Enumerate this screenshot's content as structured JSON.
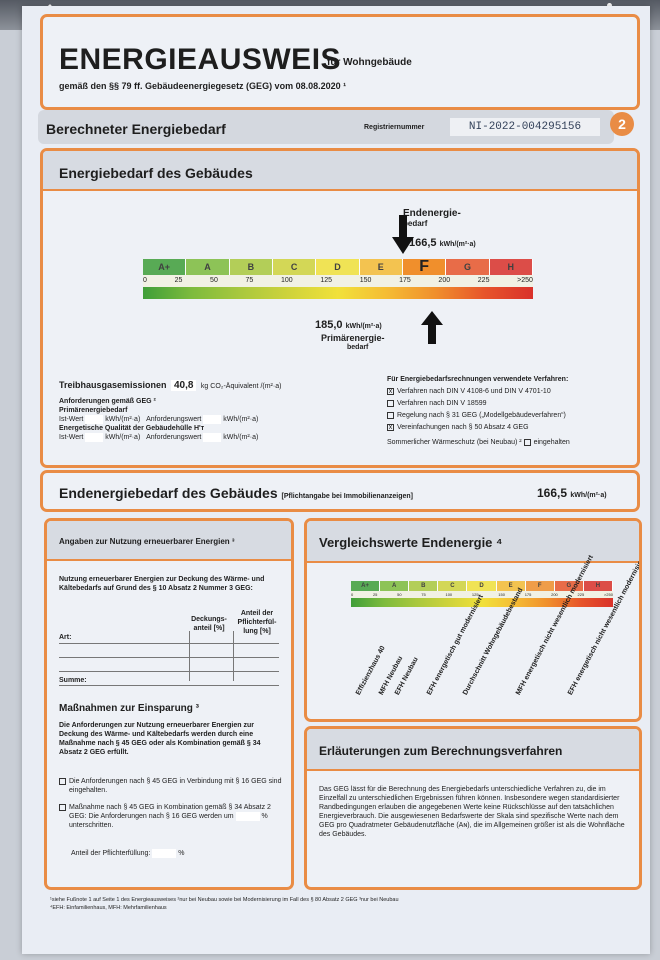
{
  "header": {
    "title": "ENERGIEAUSWEIS",
    "subtitle": "für Wohngebäude",
    "legal": "gemäß den §§ 79 ff. Gebäudeenergiegesetz (GEG) vom 08.08.2020 ¹"
  },
  "section_bar": {
    "title": "Berechneter Energiebedarf",
    "reg_label": "Registriernummer",
    "reg_value": "NI-2022-004295156",
    "page_number": "2"
  },
  "demand": {
    "title": "Energiebedarf des Gebäudes",
    "end_label_1": "Endenergie-",
    "end_label_2": "bedarf",
    "end_value": "166,5",
    "end_unit": "kWh/(m²·a)",
    "primary_value": "185,0",
    "primary_unit": "kWh/(m²·a)",
    "primary_label_1": "Primärenergie-",
    "primary_label_2": "bedarf",
    "ghg_label": "Treibhausgasemissionen",
    "ghg_value": "40,8",
    "ghg_unit": "kg CO₂-Äquivalent /(m²·a)",
    "req_title": "Anforderungen gemäß GEG ²",
    "req_primary": "Primärenergiebedarf",
    "ist": "Ist-Wert",
    "unit_short": "kWh/(m²·a)",
    "anf": "Anforderungswert",
    "quality": "Energetische Qualität der Gebäudehülle H'ᴛ",
    "methods_title": "Für Energiebedarfsrechnungen verwendete Verfahren:",
    "methods": [
      {
        "label": "Verfahren nach DIN V 4108-6 und DIN V 4701-10",
        "mark": "x"
      },
      {
        "label": "Verfahren nach DIN V 18599",
        "mark": ""
      },
      {
        "label": "Regelung nach § 31 GEG („Modellgebäudeverfahren“)",
        "mark": ""
      },
      {
        "label": "Vereinfachungen nach § 50 Absatz 4 GEG",
        "mark": "x"
      }
    ],
    "summer_label": "Sommerlicher Wärmeschutz (bei Neubau) ²",
    "summer_check": "eingehalten"
  },
  "scale": {
    "classes": [
      "A+",
      "A",
      "B",
      "C",
      "D",
      "E",
      "F",
      "G",
      "H"
    ],
    "class_colors": [
      "#3f9e3a",
      "#7dbb3c",
      "#a9c83d",
      "#cfd33b",
      "#f1e13a",
      "#f5bc34",
      "#f08f2c",
      "#e7552a",
      "#d9312a"
    ],
    "ticks": [
      "0",
      "25",
      "50",
      "75",
      "100",
      "125",
      "150",
      "175",
      "200",
      "225",
      ">250"
    ],
    "max": 250,
    "current_class": "F",
    "end_energy": 166.5,
    "primary_energy": 185.0
  },
  "end_energy_box": {
    "label": "Endenergiebedarf des Gebäudes",
    "note": "[Pflichtangabe bei Immobilienanzeigen]",
    "value": "166,5",
    "unit": "kWh/(m²·a)"
  },
  "renewables": {
    "title": "Angaben zur Nutzung erneuerbarer Energien ³",
    "intro": "Nutzung erneuerbarer Energien zur Deckung des Wärme- und Kältebedarfs auf Grund des § 10 Absatz 2 Nummer 3 GEG:",
    "col_art": "Art:",
    "col_deckung": "Deckungs-anteil [%]",
    "col_pflicht": "Anteil der Pflichterfül-lung [%]",
    "summe": "Summe:",
    "savings_title": "Maßnahmen zur Einsparung ³",
    "savings_text": "Die Anforderungen zur Nutzung erneuerbarer Energien zur Deckung des Wärme- und Kältebedarfs werden durch eine Maßnahme nach § 45 GEG oder als Kombination gemäß § 34 Absatz 2 GEG erfüllt.",
    "opt1": "Die Anforderungen nach § 45 GEG in Verbindung mit § 16 GEG sind eingehalten.",
    "opt2": "Maßnahme nach § 45 GEG in Kombination gemäß § 34 Absatz 2 GEG: Die Anforderungen nach § 16 GEG werden um",
    "opt2_tail": "unterschritten.",
    "pct": "%",
    "fulfill": "Anteil der Pflichterfüllung:"
  },
  "comparison": {
    "title": "Vergleichswerte Endenergie ⁴",
    "labels": [
      "Effizienzhaus 40",
      "MFH Neubau",
      "EFH Neubau",
      "EFH energetisch gut modernisiert",
      "Durchschnitt Wohngebäudebestand",
      "MFH energetisch nicht wesentlich modernisiert",
      "EFH energetisch nicht wesentlich modernisiert"
    ],
    "label_positions": [
      8,
      30,
      45,
      75,
      110,
      160,
      210
    ]
  },
  "explanation": {
    "title": "Erläuterungen zum Berechnungsverfahren",
    "text": "Das GEG lässt für die Berechnung des Energiebedarfs unterschiedliche Verfahren zu, die im Einzelfall zu unterschiedlichen Ergebnissen führen können. Insbesondere wegen standardisierter Randbedingungen erlauben die angegebenen Werte keine Rückschlüsse auf den tatsächlichen Energieverbrauch. Die ausgewiesenen Bedarfswerte der Skala sind spezifische Werte nach dem GEG pro Quadratmeter Gebäudenutzfläche (Aɴ), die im Allgemeinen größer ist als die Wohnfläche des Gebäudes."
  },
  "footnotes": {
    "line1": "¹siehe Fußnote 1 auf Seite 1 des Energieausweises   ²nur bei Neubau sowie bei Modernisierung im Fall des § 80 Absatz 2 GEG   ³nur bei Neubau",
    "line2": "⁴EFH: Einfamilienhaus, MFH: Mehrfamilienhaus"
  }
}
